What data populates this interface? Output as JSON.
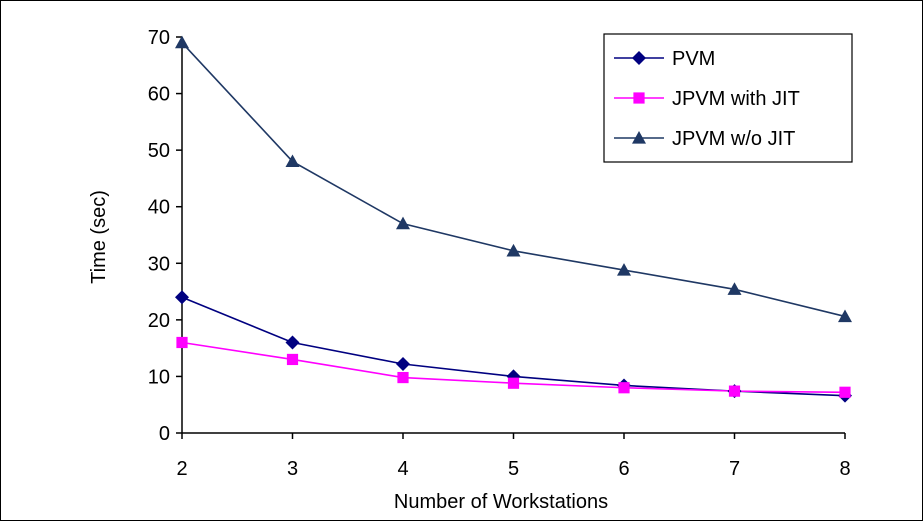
{
  "chart_data": {
    "type": "line",
    "title": "",
    "xlabel": "Number of Workstations",
    "ylabel": "Time (sec)",
    "x": [
      2,
      3,
      4,
      5,
      6,
      7,
      8
    ],
    "xlim": [
      2,
      8
    ],
    "ylim": [
      0,
      70
    ],
    "yticks": [
      0,
      10,
      20,
      30,
      40,
      50,
      60,
      70
    ],
    "grid": false,
    "legend_position": "top-right",
    "series": [
      {
        "name": "PVM",
        "marker": "diamond",
        "color": "#000080",
        "values": [
          24,
          16,
          12.2,
          10,
          8.4,
          7.4,
          6.6
        ]
      },
      {
        "name": "JPVM with JIT",
        "marker": "square",
        "color": "#ff00ff",
        "values": [
          16,
          13,
          9.8,
          8.8,
          8,
          7.4,
          7.2
        ]
      },
      {
        "name": "JPVM w/o JIT",
        "marker": "triangle",
        "color": "#1f3864",
        "values": [
          69,
          48,
          37,
          32.2,
          28.8,
          25.4,
          20.6
        ]
      }
    ]
  }
}
